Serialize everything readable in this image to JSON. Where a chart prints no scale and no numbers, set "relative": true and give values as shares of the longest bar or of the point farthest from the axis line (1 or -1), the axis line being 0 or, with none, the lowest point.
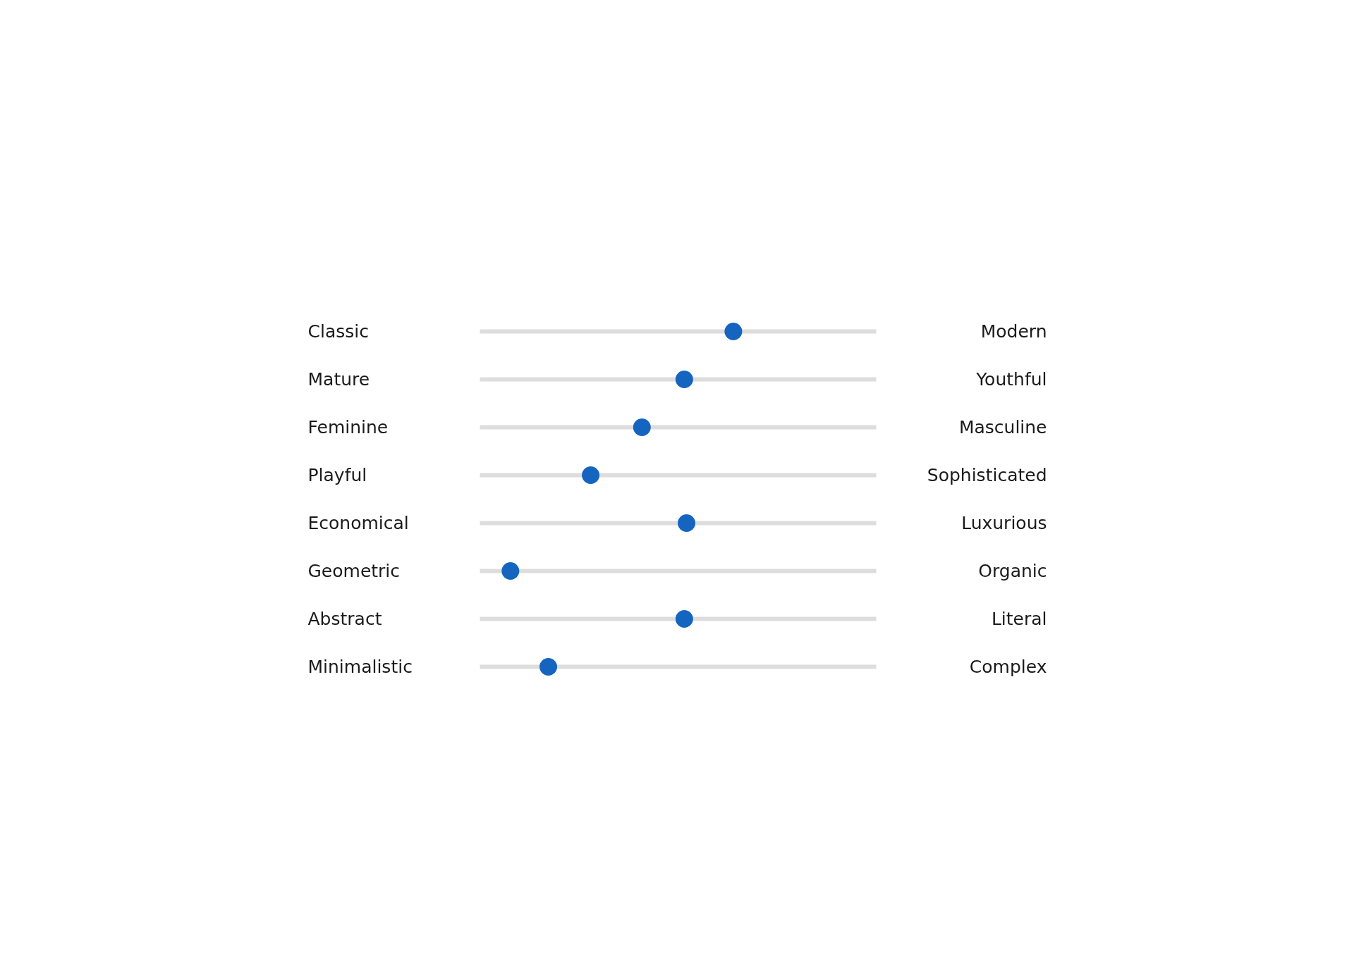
{
  "chart_data": {
    "type": "scatter",
    "orientation": "horizontal",
    "relative": true,
    "marker": "circle",
    "grid": "y",
    "categories": [
      "Classic",
      "Mature",
      "Feminine",
      "Playful",
      "Economical",
      "Geometric",
      "Abstract",
      "Minimalistic"
    ],
    "y2_categories": [
      "Modern",
      "Youthful",
      "Masculine",
      "Sophisticated",
      "Luxurious",
      "Organic",
      "Literal",
      "Complex"
    ],
    "color": "#1565c0",
    "values": [
      1,
      0.78,
      0.59,
      0.36,
      0.79,
      0,
      0.78,
      0.17
    ]
  }
}
